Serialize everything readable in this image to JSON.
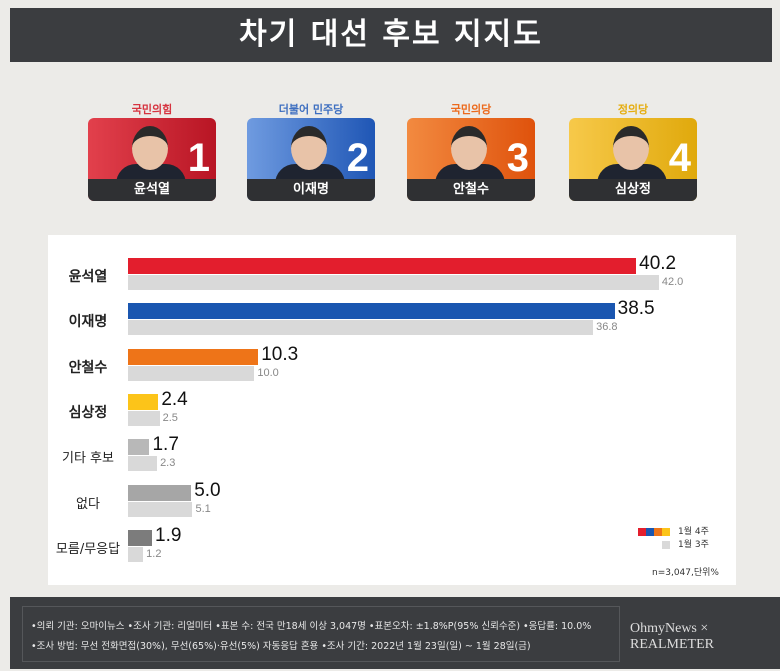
{
  "title": "차기 대선 후보 지지도",
  "candidates": [
    {
      "party": "국민의힘",
      "name": "윤석열",
      "number": "1",
      "party_color": "#d6333f",
      "bg": "linear-gradient(90deg,#e2404c,#b81524)"
    },
    {
      "party": "더불어 민주당",
      "name": "이재명",
      "number": "2",
      "party_color": "#3e6fc0",
      "bg": "linear-gradient(90deg,#6f9be0,#1f56b5)"
    },
    {
      "party": "국민의당",
      "name": "안철수",
      "number": "3",
      "party_color": "#ec6a1c",
      "bg": "linear-gradient(90deg,#f28a40,#df520c)"
    },
    {
      "party": "정의당",
      "name": "심상정",
      "number": "4",
      "party_color": "#e5ad10",
      "bg": "linear-gradient(90deg,#f7c94a,#e0a90c)"
    }
  ],
  "chart_data": {
    "type": "bar",
    "orientation": "horizontal",
    "categories": [
      "윤석열",
      "이재명",
      "안철수",
      "심상정",
      "기타 후보",
      "없다",
      "모름/무응답"
    ],
    "series": [
      {
        "name": "1월 4주",
        "values": [
          40.2,
          38.5,
          10.3,
          2.4,
          1.7,
          5.0,
          1.9
        ],
        "colors": [
          "#e31e2d",
          "#1a56b0",
          "#ee7418",
          "#fcc419",
          "#b8b8b8",
          "#a6a6a6",
          "#7c7c7c"
        ]
      },
      {
        "name": "1월 3주",
        "values": [
          42.0,
          36.8,
          10.0,
          2.5,
          2.3,
          5.1,
          1.2
        ],
        "color": "#d9d9d9"
      }
    ],
    "labels_current": [
      "40.2",
      "38.5",
      "10.3",
      "2.4",
      "1.7",
      "5.0",
      "1.9"
    ],
    "labels_prev": [
      "42.0",
      "36.8",
      "10.0",
      "2.5",
      "2.3",
      "5.1",
      "1.2"
    ],
    "bold_categories": [
      true,
      true,
      true,
      true,
      false,
      false,
      false
    ],
    "legend": {
      "current": "1월 4주",
      "prev": "1월 3주",
      "placement": "bottom-right"
    },
    "note": "n=3,047,단위%"
  },
  "footer": {
    "line1": "•의뢰 기관: 오마이뉴스 •조사 기관: 리얼미터 •표본 수: 전국 만18세 이상 3,047명 •표본오차: ±1.8%P(95% 신뢰수준) •응답률: 10.0%",
    "line2": "•조사 방법: 무선 전화면접(30%), 무선(65%)·유선(5%) 자동응답 혼용  •조사 기간: 2022년 1월 23일(일) ~ 1월 28일(금)",
    "brand": "OhmyNews × REALMETER"
  }
}
